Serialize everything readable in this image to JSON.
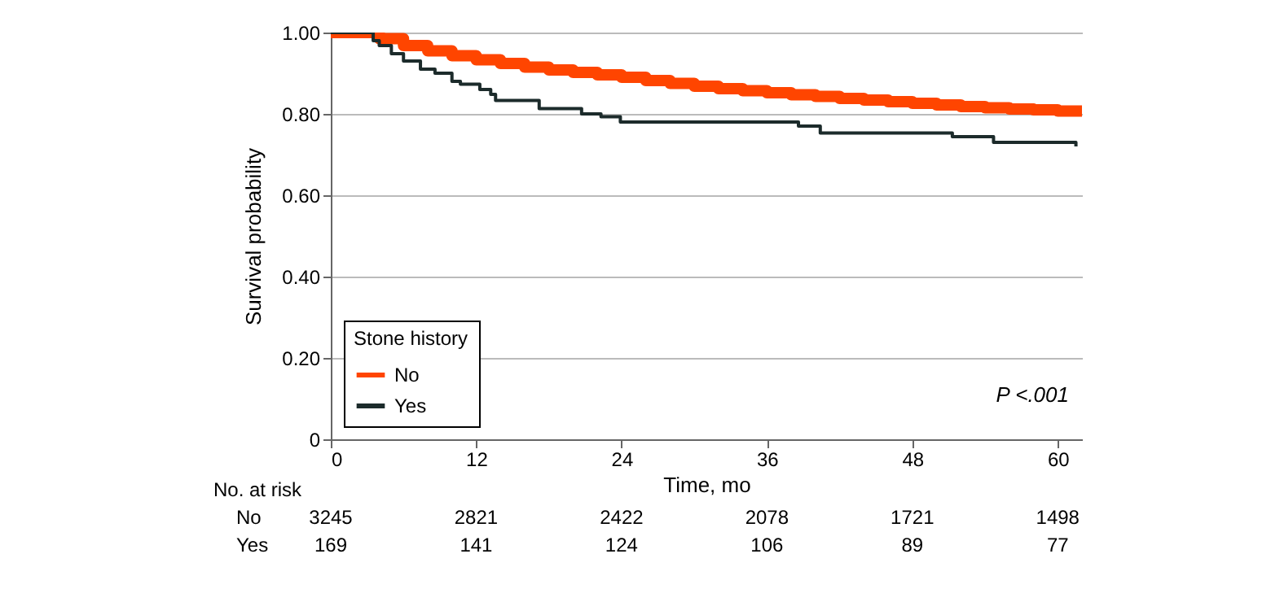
{
  "chart_data": {
    "type": "step",
    "xlabel": "Time, mo",
    "ylabel": "Survival probability",
    "legend_title": "Stone history",
    "xlim": [
      0,
      62
    ],
    "xticks": [
      0,
      12,
      24,
      36,
      48,
      60
    ],
    "ylim": [
      0,
      1
    ],
    "yticks": [
      {
        "value": 0,
        "label": "0"
      },
      {
        "value": 0.2,
        "label": "0.20"
      },
      {
        "value": 0.4,
        "label": "0.40"
      },
      {
        "value": 0.6,
        "label": "0.60"
      },
      {
        "value": 0.8,
        "label": "0.80"
      },
      {
        "value": 1,
        "label": "1.00"
      }
    ],
    "grid": "y",
    "legend": "bottom left",
    "series": [
      {
        "name": "No",
        "color": "#ff4500",
        "x": [
          0,
          2,
          4,
          6,
          8,
          10,
          12,
          14,
          16,
          18,
          20,
          22,
          24,
          26,
          28,
          30,
          32,
          34,
          36,
          38,
          40,
          42,
          44,
          46,
          48,
          50,
          52,
          54,
          56,
          58,
          60,
          62
        ],
        "values": [
          1,
          1,
          0.985,
          0.968,
          0.955,
          0.943,
          0.933,
          0.924,
          0.915,
          0.908,
          0.902,
          0.896,
          0.89,
          0.882,
          0.875,
          0.868,
          0.862,
          0.857,
          0.852,
          0.847,
          0.843,
          0.838,
          0.834,
          0.83,
          0.826,
          0.822,
          0.818,
          0.815,
          0.812,
          0.81,
          0.807,
          0.805
        ]
      },
      {
        "name": "Yes",
        "color": "#1c2b2b",
        "x": [
          0,
          3.5,
          4,
          5,
          6,
          7.4,
          8.6,
          10,
          10.7,
          12.3,
          13.2,
          13.6,
          17.2,
          20.7,
          22.3,
          23.9,
          38.6,
          40.4,
          51.3,
          54.7,
          61.5
        ],
        "values": [
          1,
          0.98,
          0.968,
          0.948,
          0.93,
          0.91,
          0.9,
          0.88,
          0.873,
          0.86,
          0.848,
          0.833,
          0.813,
          0.8,
          0.793,
          0.78,
          0.77,
          0.753,
          0.744,
          0.73,
          0.72
        ]
      }
    ],
    "annotations": [
      "P <.001",
      "No. at risk",
      "No",
      "3245",
      "2821",
      "2422",
      "2078",
      "1721",
      "1498",
      "Yes",
      "169",
      "141",
      "124",
      "106",
      "89",
      "77"
    ]
  }
}
